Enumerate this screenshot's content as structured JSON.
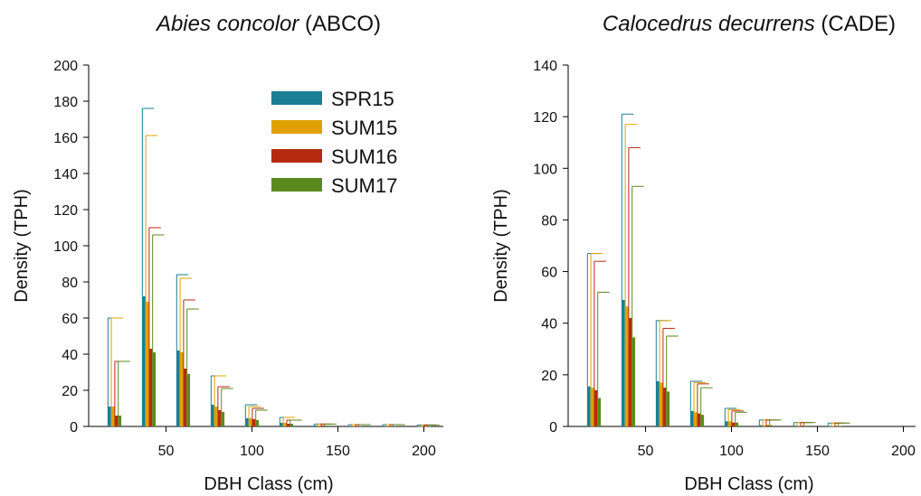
{
  "chart_data": [
    {
      "type": "bar",
      "title_italic": "Abies concolor",
      "title_suffix": " (ABCO)",
      "xlabel": "DBH Class (cm)",
      "ylabel": "Density (TPH)",
      "xlim": [
        5,
        215
      ],
      "ylim": [
        0,
        200
      ],
      "yticks": [
        0,
        20,
        40,
        60,
        80,
        100,
        120,
        140,
        160,
        180,
        200
      ],
      "xticks": [
        50,
        100,
        150,
        200
      ],
      "categories": [
        20,
        40,
        60,
        80,
        100,
        120,
        140,
        160,
        180,
        200
      ],
      "legend_position": "top-right",
      "series": [
        {
          "name": "SPR15",
          "color": "#1a7f94",
          "values": [
            11,
            72,
            42,
            12,
            4.5,
            2,
            0.5,
            0.3,
            0.3,
            0.2
          ],
          "errors": [
            60,
            176,
            84,
            28,
            12,
            5,
            1.3,
            1.0,
            1.0,
            0.8
          ]
        },
        {
          "name": "SUM15",
          "color": "#e0a100",
          "values": [
            11,
            69,
            41,
            11,
            4.5,
            2,
            0.5,
            0.3,
            0.3,
            0.2
          ],
          "errors": [
            60,
            161,
            82,
            28,
            11,
            5,
            1.3,
            1.0,
            1.0,
            0.8
          ]
        },
        {
          "name": "SUM16",
          "color": "#b52a10",
          "values": [
            6,
            43,
            32,
            9,
            4,
            1.5,
            0.5,
            0.3,
            0.3,
            0.2
          ],
          "errors": [
            36,
            110,
            70,
            22,
            10,
            3.5,
            1.3,
            1.0,
            1.0,
            0.8
          ]
        },
        {
          "name": "SUM17",
          "color": "#5a8a1e",
          "values": [
            6,
            41,
            29,
            8,
            3.5,
            1.5,
            0.5,
            0.3,
            0.3,
            0.2
          ],
          "errors": [
            36,
            106,
            65,
            21,
            9,
            3.5,
            1.3,
            1.0,
            1.0,
            0.8
          ]
        }
      ]
    },
    {
      "type": "bar",
      "title_italic": "Calocedrus decurrens",
      "title_suffix": " (CADE)",
      "xlabel": "DBH Class (cm)",
      "ylabel": "Density (TPH)",
      "xlim": [
        5,
        210
      ],
      "ylim": [
        0,
        140
      ],
      "yticks": [
        0,
        20,
        40,
        60,
        80,
        100,
        120,
        140
      ],
      "xticks": [
        50,
        100,
        150,
        200
      ],
      "categories": [
        20,
        40,
        60,
        80,
        100,
        120,
        140,
        160
      ],
      "series": [
        {
          "name": "SPR15",
          "color": "#1a7f94",
          "values": [
            15.5,
            49,
            17.5,
            6,
            2,
            0.5,
            0.3,
            0.2
          ],
          "errors": [
            67,
            121,
            41,
            17.5,
            7,
            2.5,
            1.5,
            1.3
          ]
        },
        {
          "name": "SUM15",
          "color": "#e0a100",
          "values": [
            15,
            46.5,
            17,
            5.5,
            2,
            0.5,
            0.3,
            0.2
          ],
          "errors": [
            67,
            117,
            41,
            17,
            6.5,
            2.5,
            1.5,
            1.3
          ]
        },
        {
          "name": "SUM16",
          "color": "#b52a10",
          "values": [
            14,
            42,
            15,
            5,
            1.5,
            0.5,
            0.3,
            0.2
          ],
          "errors": [
            64,
            108,
            38,
            16.5,
            6,
            2.5,
            1.5,
            1.3
          ]
        },
        {
          "name": "SUM17",
          "color": "#5a8a1e",
          "values": [
            11,
            34.5,
            13.5,
            4.5,
            1.5,
            0.5,
            0.3,
            0.2
          ],
          "errors": [
            52,
            93,
            35,
            15,
            5.5,
            2.5,
            1.5,
            1.3
          ]
        }
      ]
    }
  ]
}
